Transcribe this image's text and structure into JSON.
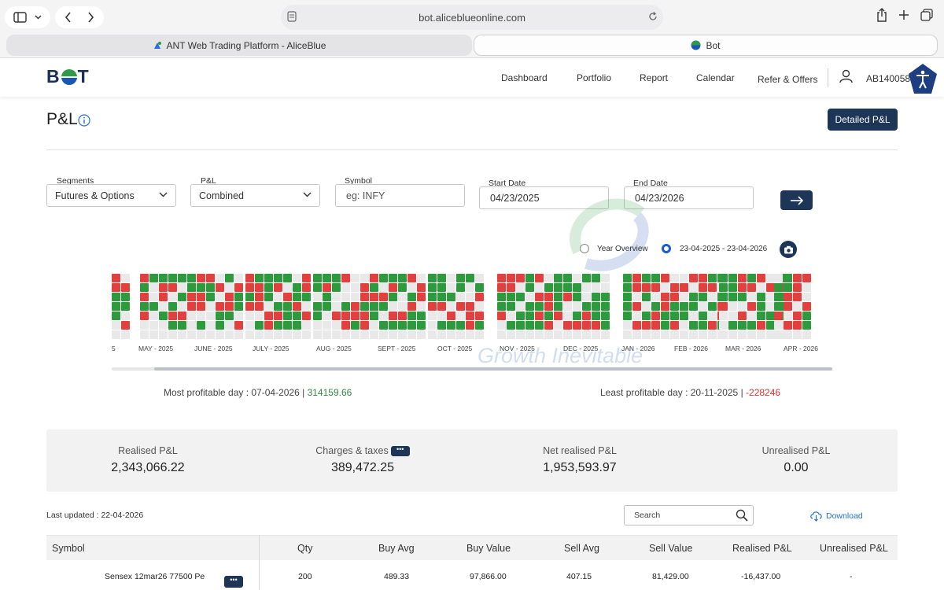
{
  "browser": {
    "url": "bot.aliceblueonline.com",
    "tabs": [
      {
        "label": "ANT Web Trading Platform - AliceBlue"
      },
      {
        "label": "Bot"
      }
    ]
  },
  "header": {
    "logo_text": "BOT",
    "nav": [
      "Dashboard",
      "Portfolio",
      "Report",
      "Calendar",
      "Refer & Offers"
    ],
    "user_id": "AB140058"
  },
  "page": {
    "title": "P&L",
    "detailed_button": "Detailed P&L"
  },
  "filters": {
    "segments": {
      "label": "Segments",
      "value": "Futures & Options"
    },
    "pl": {
      "label": "P&L",
      "value": "Combined"
    },
    "symbol": {
      "label": "Symbol",
      "placeholder": "eg: INFY"
    },
    "start_date": {
      "label": "Start Date",
      "value": "04/23/2025"
    },
    "end_date": {
      "label": "End Date",
      "value": "04/23/2026"
    }
  },
  "view_toggle": {
    "year_overview": "Year Overview",
    "range": "23-04-2025 - 23-04-2026",
    "selected": "range"
  },
  "heatmap": {
    "months": [
      "5",
      "MAY - 2025",
      "JUNE - 2025",
      "JULY - 2025",
      "AUG - 2025",
      "SEPT - 2025",
      "OCT - 2025",
      "NOV - 2025",
      "DEC - 2025",
      "JAN - 2026",
      "FEB - 2026",
      "MAR - 2026",
      "APR - 2026"
    ],
    "colors": {
      "profit": "#2e9a3e",
      "loss": "#e2403f",
      "none": "#e9e9e9"
    },
    "watermark": "Growth Inevitable"
  },
  "extremes": {
    "most_label": "Most profitable day : 07-04-2026 |",
    "most_value": "314159.66",
    "least_label": "Least profitable day : 20-11-2025 |",
    "least_value": "-228246"
  },
  "summary": {
    "realised_label": "Realised P&L",
    "realised_value": "2,343,066.22",
    "charges_label": "Charges & taxes",
    "charges_value": "389,472.25",
    "net_label": "Net realised P&L",
    "net_value": "1,953,593.97",
    "unrealised_label": "Unrealised P&L",
    "unrealised_value": "0.00"
  },
  "table_tools": {
    "last_updated": "Last updated : 22-04-2026",
    "search_placeholder": "Search",
    "download": "Download"
  },
  "table": {
    "columns": [
      "Symbol",
      "Qty",
      "Buy Avg",
      "Buy Value",
      "Sell Avg",
      "Sell Value",
      "Realised P&L",
      "Unrealised P&L"
    ],
    "rows": [
      {
        "symbol": "Sensex 12mar26 77500 Pe",
        "qty": "200",
        "buy_avg": "489.33",
        "buy_value": "97,866.00",
        "sell_avg": "407.15",
        "sell_value": "81,429.00",
        "realised": "-16,437.00",
        "unrealised": "-"
      }
    ]
  },
  "colors": {
    "accent": "#1d3557",
    "profit": "#2e8b3e",
    "loss": "#e03131",
    "link": "#1e6fd0"
  }
}
